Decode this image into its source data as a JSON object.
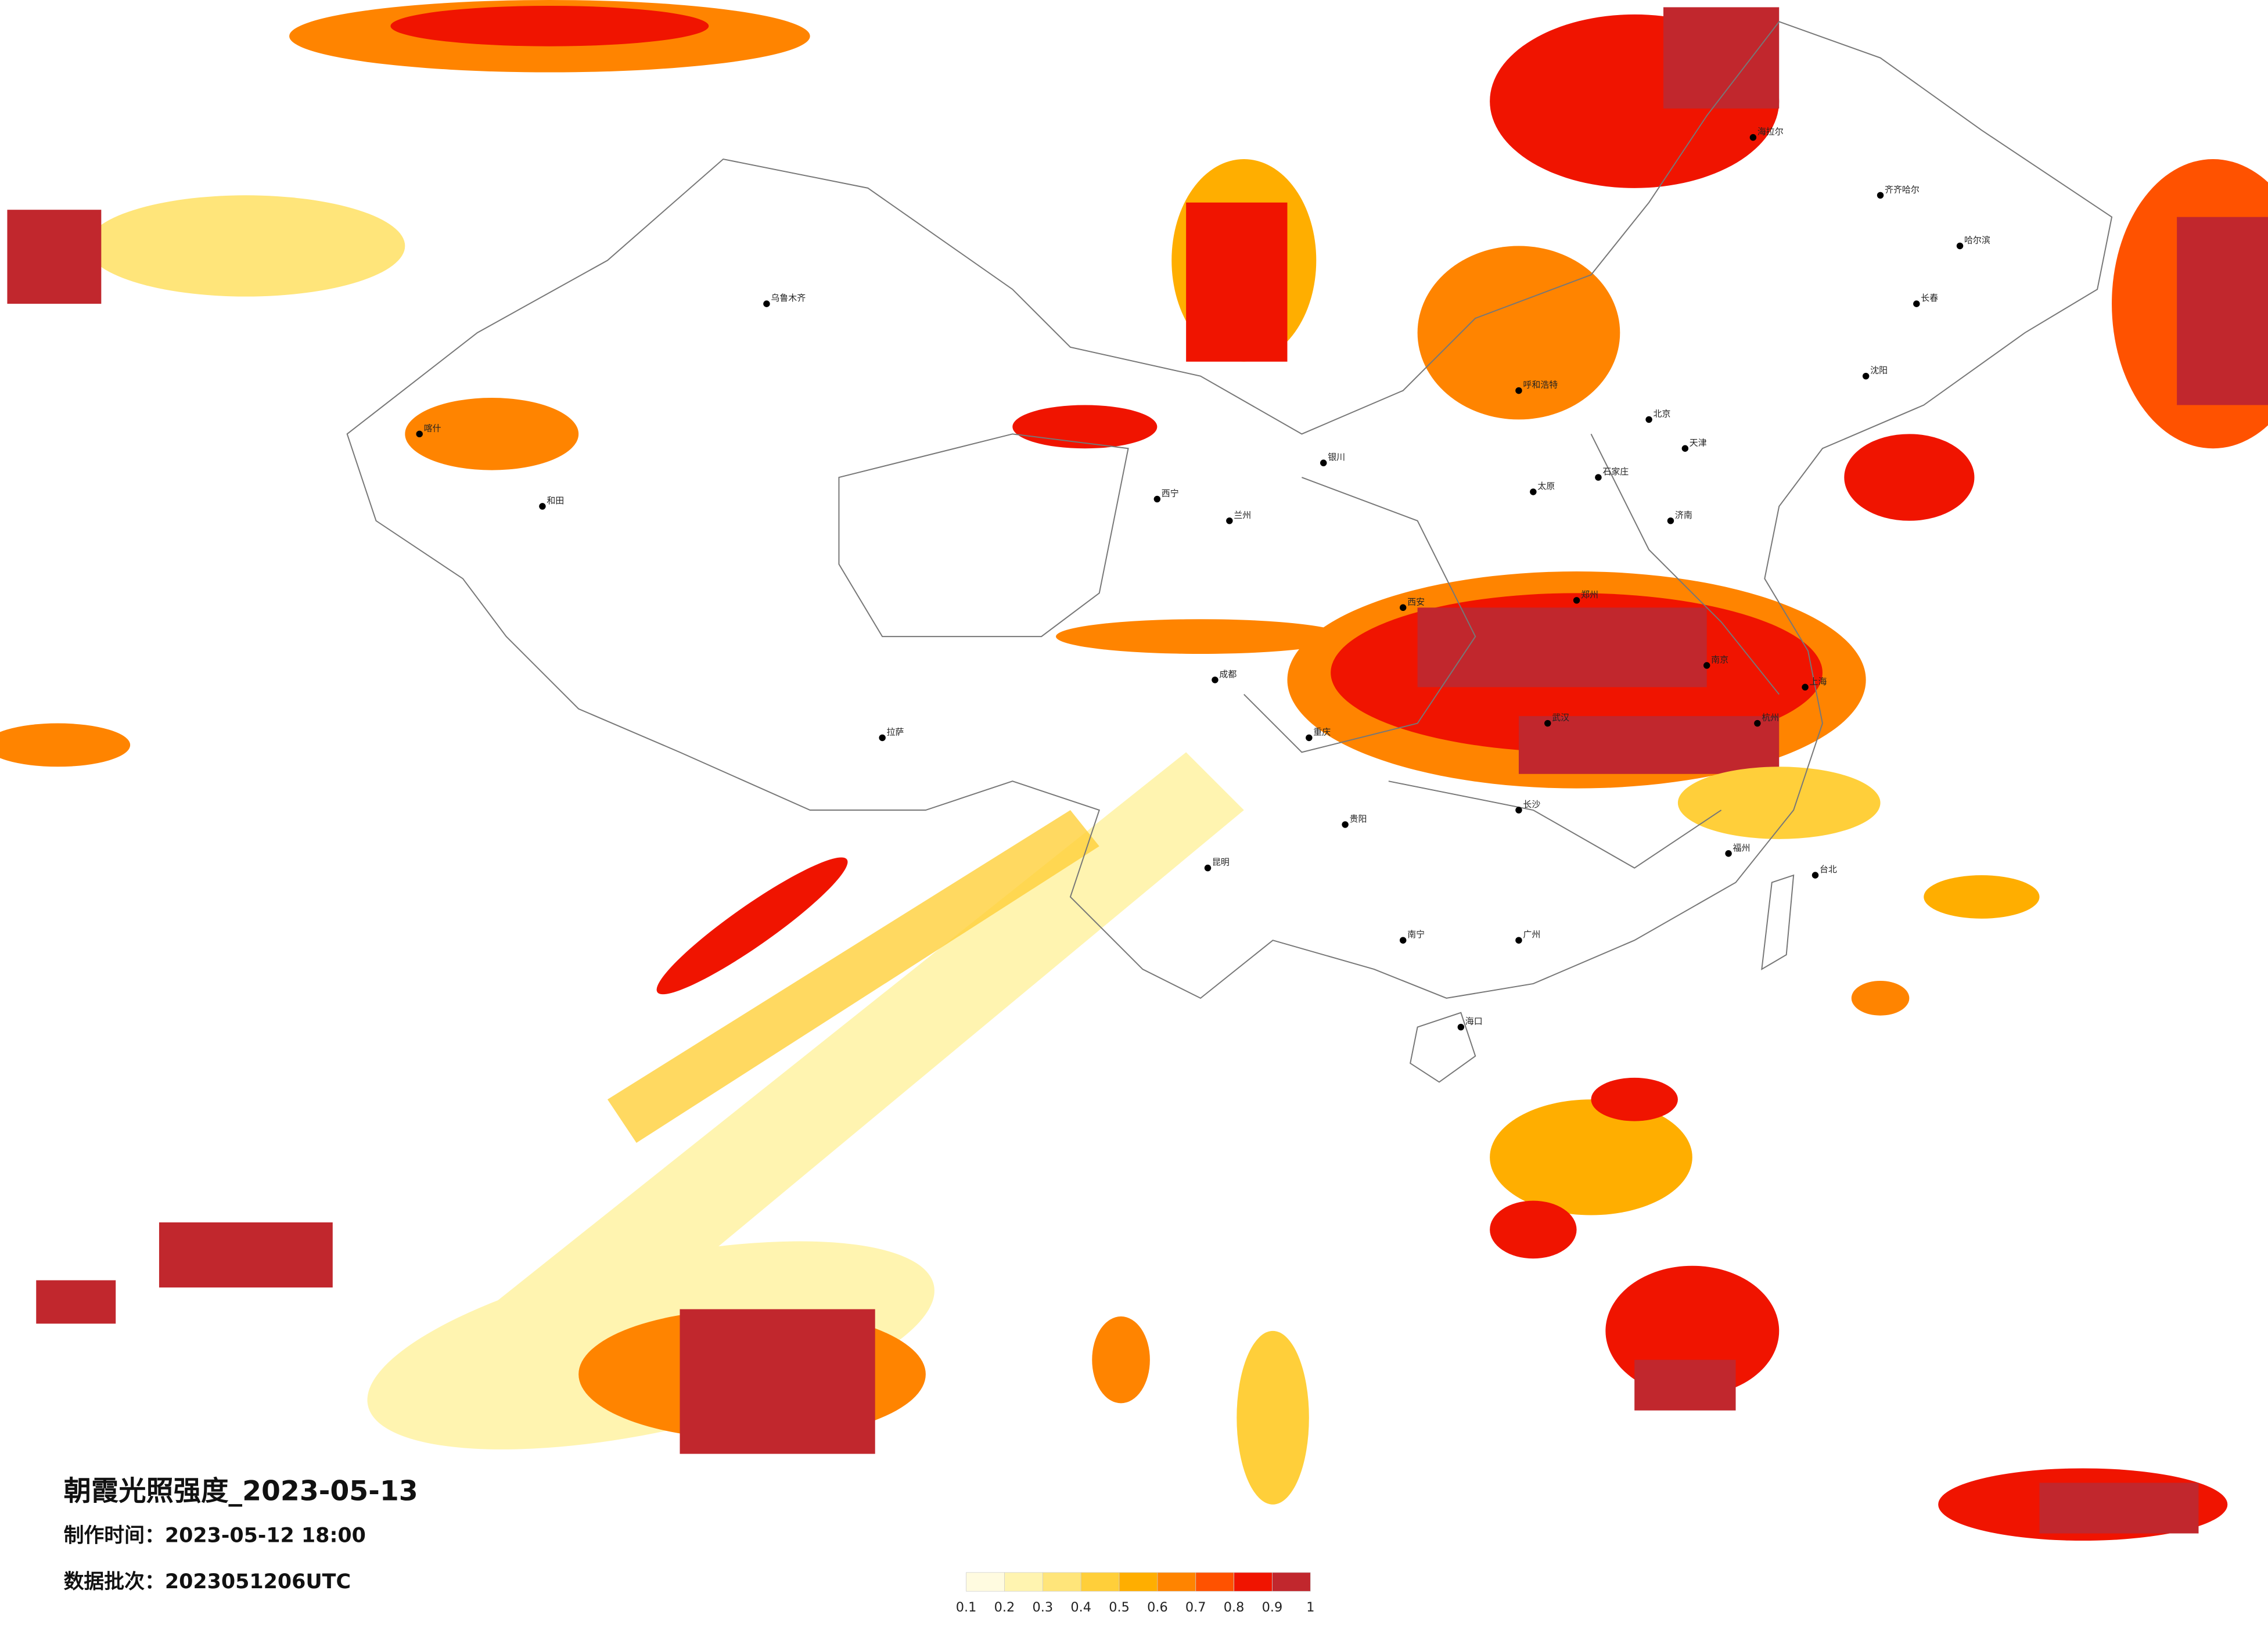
{
  "title": "朝霞光照强度_2023-05-13",
  "made_time": "制作时间：2023-05-12 18:00",
  "data_batch": "数据批次：2023051206UTC",
  "legend": {
    "ticks": [
      0.1,
      0.2,
      0.3,
      0.4,
      0.5,
      0.6,
      0.7,
      0.8,
      0.9,
      1
    ],
    "colors": [
      "#fffbe0",
      "#fff4b0",
      "#ffe57a",
      "#ffcf3a",
      "#ffae00",
      "#ff8400",
      "#ff5200",
      "#f01400",
      "#c1272d"
    ]
  },
  "cities": [
    "海拉尔",
    "齐齐哈尔",
    "哈尔滨",
    "长春",
    "沈阳",
    "北京",
    "天津",
    "石家庄",
    "太原",
    "呼和浩特",
    "银川",
    "兰州",
    "西宁",
    "乌鲁木齐",
    "拉萨",
    "成都",
    "重庆",
    "贵阳",
    "昆明",
    "南宁",
    "广州",
    "福州",
    "杭州",
    "南京",
    "上海",
    "武汉",
    "长沙",
    "郑州",
    "济南",
    "西安",
    "海口",
    "台北",
    "喀什",
    "和田"
  ]
}
